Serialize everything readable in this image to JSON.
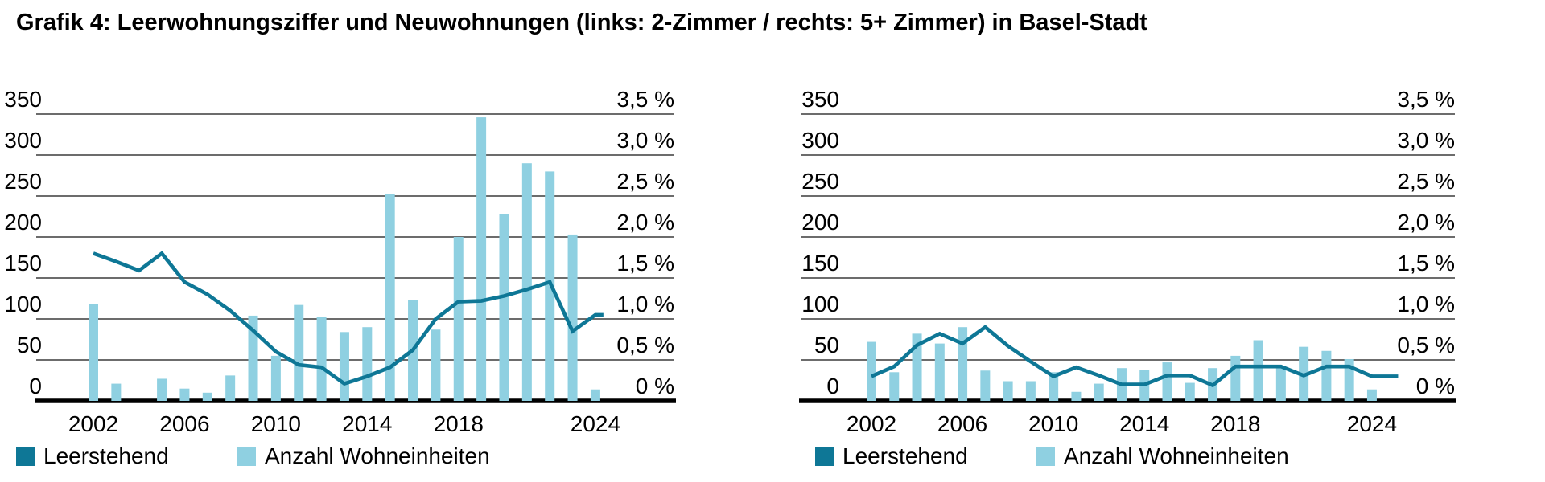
{
  "title": "Grafik 4: Leerwohnungsziffer und Neuwohnungen (links: 2-Zimmer / rechts: 5+ Zimmer) in Basel-Stadt",
  "colors": {
    "bar": "#8FD0E1",
    "line": "#0E7796",
    "grid": "#3C3C3C",
    "axis": "#000000",
    "text": "#000000"
  },
  "legend": {
    "items": [
      {
        "label": "Leerstehend",
        "color": "#0E7796"
      },
      {
        "label": "Anzahl Wohneinheiten",
        "color": "#8FD0E1"
      }
    ]
  },
  "chart_data": [
    {
      "type": "bar",
      "name": "links: 2-Zimmer",
      "x": [
        2002,
        2003,
        2004,
        2005,
        2006,
        2007,
        2008,
        2009,
        2010,
        2011,
        2012,
        2013,
        2014,
        2015,
        2016,
        2017,
        2018,
        2019,
        2020,
        2021,
        2022,
        2023,
        2024
      ],
      "series": [
        {
          "name": "Anzahl Wohneinheiten",
          "type": "bar",
          "axis": "left",
          "values": [
            118,
            21,
            0,
            27,
            15,
            10,
            31,
            104,
            55,
            117,
            102,
            84,
            90,
            252,
            123,
            87,
            200,
            346,
            228,
            290,
            280,
            203,
            14
          ]
        },
        {
          "name": "Leerstehend",
          "type": "line",
          "axis": "right",
          "unit": "%",
          "values": [
            1.8,
            1.7,
            1.59,
            1.8,
            1.45,
            1.3,
            1.1,
            0.86,
            0.6,
            0.44,
            0.41,
            0.21,
            0.3,
            0.41,
            0.62,
            1.0,
            1.21,
            1.22,
            1.28,
            1.36,
            1.45,
            0.85,
            1.05
          ]
        }
      ],
      "left_axis": {
        "range": [
          0,
          350
        ],
        "ticks": [
          0,
          50,
          100,
          150,
          200,
          250,
          300,
          350
        ],
        "tick_labels": [
          "0",
          "50",
          "100",
          "150",
          "200",
          "250",
          "300",
          "350"
        ]
      },
      "right_axis": {
        "range": [
          0,
          3.5
        ],
        "ticks": [
          0,
          0.5,
          1.0,
          1.5,
          2.0,
          2.5,
          3.0,
          3.5
        ],
        "tick_labels": [
          "0 %",
          "0,5 %",
          "1,0 %",
          "1,5 %",
          "2,0 %",
          "2,5 %",
          "3,0 %",
          "3,5 %"
        ]
      },
      "x_ticks": [
        2002,
        2006,
        2010,
        2014,
        2018,
        2024
      ],
      "grid": true,
      "legend_position": "bottom"
    },
    {
      "type": "bar",
      "name": "rechts: 5+ Zimmer",
      "x": [
        2002,
        2003,
        2004,
        2005,
        2006,
        2007,
        2008,
        2009,
        2010,
        2011,
        2012,
        2013,
        2014,
        2015,
        2016,
        2017,
        2018,
        2019,
        2020,
        2021,
        2022,
        2023,
        2024
      ],
      "series": [
        {
          "name": "Anzahl Wohneinheiten",
          "type": "bar",
          "axis": "left",
          "values": [
            72,
            35,
            82,
            70,
            90,
            37,
            24,
            24,
            35,
            11,
            21,
            40,
            38,
            47,
            22,
            40,
            55,
            74,
            42,
            66,
            61,
            51,
            14
          ]
        },
        {
          "name": "Leerstehend",
          "type": "line",
          "axis": "right",
          "unit": "%",
          "values": [
            0.3,
            0.42,
            0.68,
            0.82,
            0.7,
            0.9,
            0.67,
            0.48,
            0.3,
            0.41,
            0.31,
            0.2,
            0.2,
            0.31,
            0.31,
            0.19,
            0.42,
            0.42,
            0.42,
            0.31,
            0.42,
            0.42,
            0.3
          ]
        }
      ],
      "left_axis": {
        "range": [
          0,
          350
        ],
        "ticks": [
          0,
          50,
          100,
          150,
          200,
          250,
          300,
          350
        ],
        "tick_labels": [
          "0",
          "50",
          "100",
          "150",
          "200",
          "250",
          "300",
          "350"
        ]
      },
      "right_axis": {
        "range": [
          0,
          3.5
        ],
        "ticks": [
          0,
          0.5,
          1.0,
          1.5,
          2.0,
          2.5,
          3.0,
          3.5
        ],
        "tick_labels": [
          "0 %",
          "0,5 %",
          "1,0 %",
          "1,5 %",
          "2,0 %",
          "2,5 %",
          "3,0 %",
          "3,5 %"
        ]
      },
      "x_ticks": [
        2002,
        2006,
        2010,
        2014,
        2018,
        2024
      ],
      "grid": true,
      "legend_position": "bottom"
    }
  ]
}
